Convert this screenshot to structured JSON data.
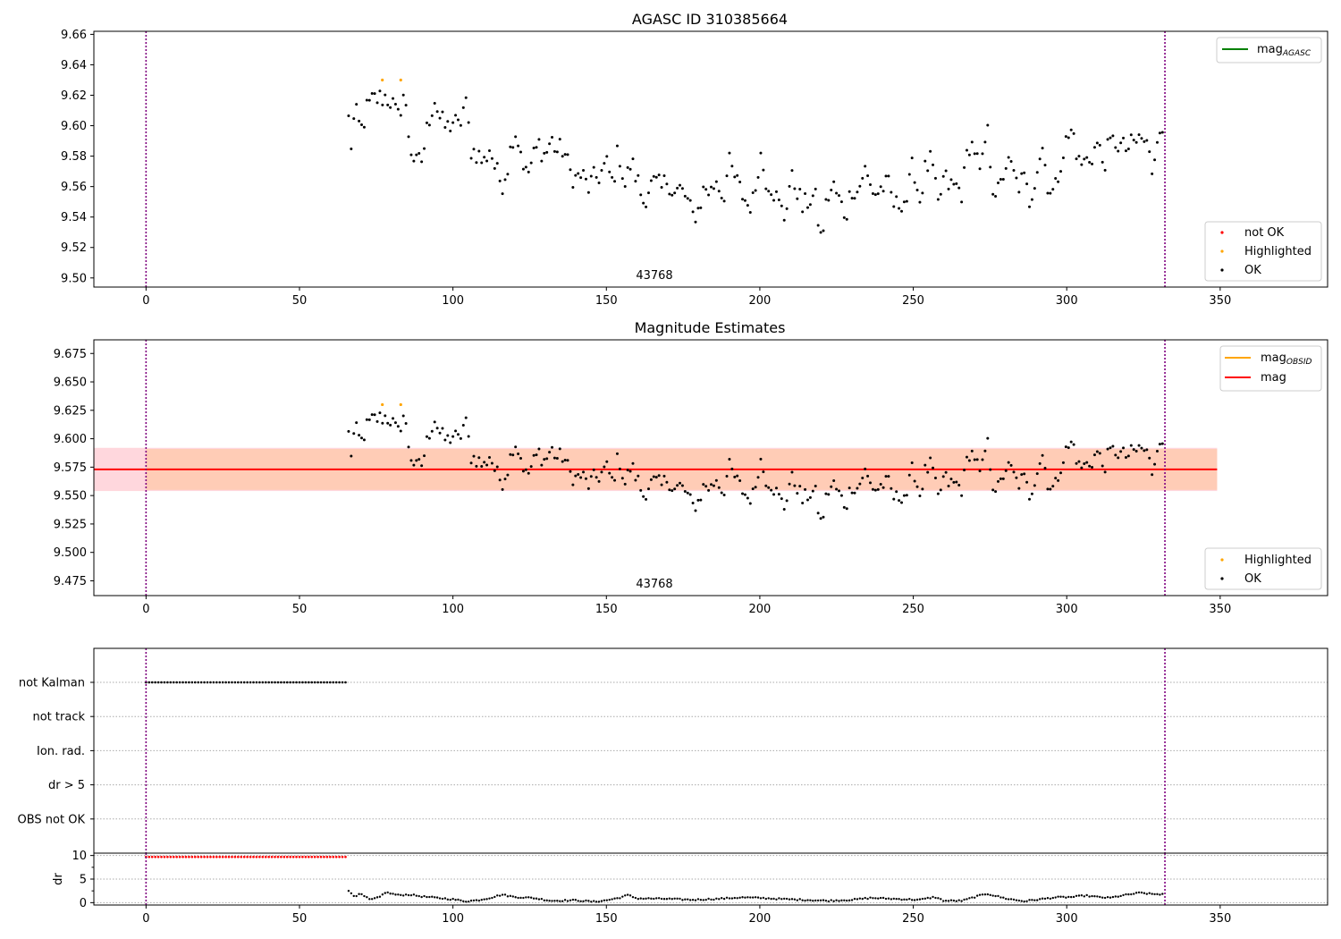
{
  "colors": {
    "ok": "#000000",
    "not_ok": "#ff0000",
    "highlighted": "#ffa500",
    "mag_agasc": "#008000",
    "mag_obsid": "#ffa500",
    "mag": "#ff0000",
    "vline": "#800080",
    "band_outer": "#ffb6c1",
    "band_inner": "#ffc8a8"
  },
  "chart_data": [
    {
      "type": "scatter",
      "title": "AGASC ID 310385664",
      "xlim": [
        -17,
        385
      ],
      "ylim": [
        9.494,
        9.662
      ],
      "xticks": [
        0,
        50,
        100,
        150,
        200,
        250,
        300,
        350
      ],
      "yticks": [
        "9.50",
        "9.52",
        "9.54",
        "9.56",
        "9.58",
        "9.60",
        "9.62",
        "9.64",
        "9.66"
      ],
      "vlines": [
        0,
        332
      ],
      "annotation": {
        "text": "43768",
        "x": 166,
        "y": 9.496
      },
      "legend_upper": [
        {
          "label": "mag",
          "sub": "AGASC",
          "kind": "line",
          "color": "#008000"
        }
      ],
      "legend_lower": [
        {
          "label": "not OK",
          "kind": "point",
          "color": "#ff0000"
        },
        {
          "label": "Highlighted",
          "kind": "point",
          "color": "#ffa500"
        },
        {
          "label": "OK",
          "kind": "point",
          "color": "#000000"
        }
      ],
      "highlighted_points": [
        [
          77,
          9.63
        ],
        [
          83,
          9.63
        ]
      ],
      "anchors": [
        [
          66,
          9.604
        ],
        [
          67,
          9.585
        ],
        [
          68,
          9.61
        ],
        [
          70,
          9.596
        ],
        [
          72,
          9.611
        ],
        [
          74,
          9.617
        ],
        [
          76,
          9.618
        ],
        [
          78,
          9.619
        ],
        [
          80,
          9.616
        ],
        [
          82,
          9.604
        ],
        [
          84,
          9.622
        ],
        [
          86,
          9.587
        ],
        [
          88,
          9.574
        ],
        [
          90,
          9.578
        ],
        [
          92,
          9.603
        ],
        [
          94,
          9.618
        ],
        [
          96,
          9.603
        ],
        [
          98,
          9.598
        ],
        [
          100,
          9.603
        ],
        [
          102,
          9.598
        ],
        [
          104,
          9.617
        ],
        [
          106,
          9.584
        ],
        [
          108,
          9.582
        ],
        [
          110,
          9.575
        ],
        [
          112,
          9.586
        ],
        [
          114,
          9.57
        ],
        [
          116,
          9.562
        ],
        [
          118,
          9.575
        ],
        [
          120,
          9.599
        ],
        [
          122,
          9.585
        ],
        [
          124,
          9.566
        ],
        [
          126,
          9.578
        ],
        [
          128,
          9.588
        ],
        [
          130,
          9.58
        ],
        [
          132,
          9.591
        ],
        [
          134,
          9.583
        ],
        [
          136,
          9.585
        ],
        [
          138,
          9.57
        ],
        [
          140,
          9.565
        ],
        [
          142,
          9.568
        ],
        [
          144,
          9.559
        ],
        [
          146,
          9.565
        ],
        [
          148,
          9.568
        ],
        [
          150,
          9.575
        ],
        [
          152,
          9.562
        ],
        [
          154,
          9.585
        ],
        [
          156,
          9.56
        ],
        [
          158,
          9.576
        ],
        [
          160,
          9.565
        ],
        [
          162,
          9.55
        ],
        [
          164,
          9.56
        ],
        [
          166,
          9.562
        ],
        [
          168,
          9.558
        ],
        [
          170,
          9.566
        ],
        [
          172,
          9.555
        ],
        [
          174,
          9.558
        ],
        [
          176,
          9.553
        ],
        [
          178,
          9.54
        ],
        [
          180,
          9.545
        ],
        [
          182,
          9.56
        ],
        [
          184,
          9.556
        ],
        [
          186,
          9.566
        ],
        [
          188,
          9.552
        ],
        [
          190,
          9.575
        ],
        [
          192,
          9.565
        ],
        [
          194,
          9.556
        ],
        [
          196,
          9.548
        ],
        [
          198,
          9.55
        ],
        [
          200,
          9.583
        ],
        [
          202,
          9.565
        ],
        [
          204,
          9.56
        ],
        [
          206,
          9.549
        ],
        [
          208,
          9.54
        ],
        [
          210,
          9.565
        ],
        [
          212,
          9.56
        ],
        [
          214,
          9.545
        ],
        [
          216,
          9.552
        ],
        [
          218,
          9.553
        ],
        [
          220,
          9.524
        ],
        [
          222,
          9.553
        ],
        [
          224,
          9.56
        ],
        [
          226,
          9.55
        ],
        [
          228,
          9.541
        ],
        [
          230,
          9.56
        ],
        [
          232,
          9.556
        ],
        [
          234,
          9.572
        ],
        [
          236,
          9.56
        ],
        [
          238,
          9.555
        ],
        [
          240,
          9.56
        ],
        [
          242,
          9.56
        ],
        [
          244,
          9.546
        ],
        [
          246,
          9.551
        ],
        [
          248,
          9.552
        ],
        [
          250,
          9.576
        ],
        [
          252,
          9.55
        ],
        [
          254,
          9.572
        ],
        [
          256,
          9.577
        ],
        [
          258,
          9.546
        ],
        [
          260,
          9.566
        ],
        [
          262,
          9.56
        ],
        [
          264,
          9.56
        ],
        [
          266,
          9.556
        ],
        [
          268,
          9.589
        ],
        [
          270,
          9.585
        ],
        [
          272,
          9.565
        ],
        [
          274,
          9.599
        ],
        [
          276,
          9.56
        ],
        [
          278,
          9.555
        ],
        [
          280,
          9.575
        ],
        [
          282,
          9.572
        ],
        [
          284,
          9.56
        ],
        [
          286,
          9.565
        ],
        [
          288,
          9.55
        ],
        [
          290,
          9.57
        ],
        [
          292,
          9.587
        ],
        [
          294,
          9.56
        ],
        [
          296,
          9.555
        ],
        [
          298,
          9.577
        ],
        [
          300,
          9.59
        ],
        [
          302,
          9.597
        ],
        [
          304,
          9.575
        ],
        [
          306,
          9.576
        ],
        [
          308,
          9.58
        ],
        [
          310,
          9.588
        ],
        [
          312,
          9.575
        ],
        [
          314,
          9.587
        ],
        [
          316,
          9.59
        ],
        [
          318,
          9.585
        ],
        [
          320,
          9.585
        ],
        [
          322,
          9.588
        ],
        [
          324,
          9.592
        ],
        [
          326,
          9.588
        ],
        [
          328,
          9.57
        ],
        [
          330,
          9.605
        ],
        [
          332,
          9.58
        ]
      ]
    },
    {
      "type": "scatter",
      "title": "Magnitude Estimates",
      "xlim": [
        -17,
        385
      ],
      "ylim": [
        9.462,
        9.687
      ],
      "xticks": [
        0,
        50,
        100,
        150,
        200,
        250,
        300,
        350
      ],
      "yticks": [
        "9.475",
        "9.500",
        "9.525",
        "9.550",
        "9.575",
        "9.600",
        "9.625",
        "9.650",
        "9.675"
      ],
      "vlines": [
        0,
        332
      ],
      "annotation": {
        "text": "43768",
        "x": 166,
        "y": 9.465
      },
      "legend_upper": [
        {
          "label": "mag",
          "sub": "OBSID",
          "kind": "line",
          "color": "#ffa500"
        },
        {
          "label": "mag",
          "kind": "line",
          "color": "#ff0000"
        }
      ],
      "legend_lower": [
        {
          "label": "Highlighted",
          "kind": "point",
          "color": "#ffa500"
        },
        {
          "label": "OK",
          "kind": "point",
          "color": "#000000"
        }
      ],
      "mag_line": 9.573,
      "band_outer": [
        9.554,
        9.592
      ],
      "band_inner": [
        9.555,
        9.591
      ],
      "band_outer_x": [
        -17,
        349
      ],
      "band_inner_x": [
        0,
        332
      ]
    },
    {
      "type": "scatter",
      "xlim": [
        -17,
        385
      ],
      "categories": [
        "not Kalman",
        "not track",
        "Ion. rad.",
        "dr > 5",
        "OBS not OK"
      ],
      "flag_points": {
        "category": "not Kalman",
        "x_range": [
          0,
          65
        ]
      },
      "vlines": [
        0,
        332
      ]
    },
    {
      "type": "scatter",
      "ylabel": "dr",
      "xlim": [
        -17,
        385
      ],
      "ylim": [
        -0.5,
        10.5
      ],
      "xticks": [
        0,
        50,
        100,
        150,
        200,
        250,
        300,
        350
      ],
      "yticks": [
        "0",
        "5",
        "10"
      ],
      "vlines": [
        0,
        332
      ],
      "dr_red": {
        "value": 9.7,
        "x_range": [
          0,
          65
        ]
      },
      "dr_anchors": [
        [
          66,
          2.5
        ],
        [
          68,
          1.4
        ],
        [
          70,
          1.8
        ],
        [
          73,
          0.6
        ],
        [
          76,
          1.1
        ],
        [
          78,
          2.2
        ],
        [
          82,
          1.6
        ],
        [
          86,
          1.7
        ],
        [
          90,
          1.3
        ],
        [
          95,
          1.0
        ],
        [
          100,
          0.7
        ],
        [
          104,
          0.3
        ],
        [
          108,
          0.5
        ],
        [
          112,
          1.0
        ],
        [
          116,
          1.7
        ],
        [
          120,
          1.2
        ],
        [
          126,
          1.0
        ],
        [
          132,
          0.4
        ],
        [
          140,
          0.5
        ],
        [
          146,
          0.2
        ],
        [
          150,
          0.5
        ],
        [
          154,
          1.0
        ],
        [
          157,
          1.6
        ],
        [
          160,
          0.9
        ],
        [
          170,
          0.8
        ],
        [
          178,
          0.6
        ],
        [
          186,
          0.8
        ],
        [
          194,
          1.1
        ],
        [
          200,
          1.0
        ],
        [
          206,
          0.8
        ],
        [
          214,
          0.6
        ],
        [
          222,
          0.4
        ],
        [
          230,
          0.6
        ],
        [
          236,
          1.0
        ],
        [
          244,
          0.8
        ],
        [
          252,
          0.6
        ],
        [
          257,
          1.2
        ],
        [
          260,
          0.4
        ],
        [
          266,
          0.4
        ],
        [
          270,
          1.2
        ],
        [
          274,
          1.9
        ],
        [
          280,
          0.9
        ],
        [
          286,
          0.3
        ],
        [
          290,
          0.6
        ],
        [
          296,
          1.1
        ],
        [
          302,
          1.2
        ],
        [
          306,
          1.5
        ],
        [
          310,
          1.2
        ],
        [
          314,
          1.0
        ],
        [
          318,
          1.5
        ],
        [
          324,
          2.1
        ],
        [
          328,
          1.8
        ],
        [
          332,
          1.8
        ]
      ]
    }
  ]
}
